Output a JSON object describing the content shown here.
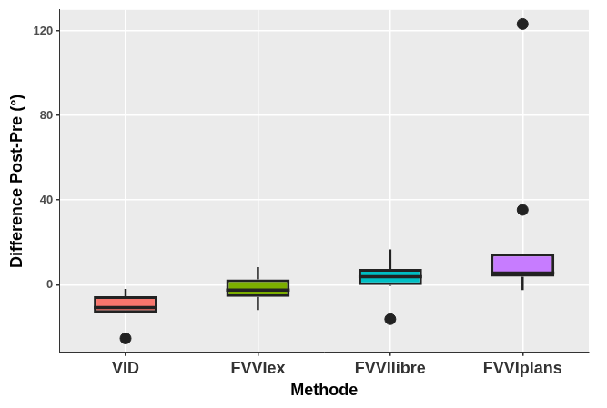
{
  "chart_data": {
    "type": "boxplot",
    "x_label": "Methode",
    "y_label": "Difference Post-Pre (°)",
    "categories": [
      "VID",
      "FVVIex",
      "FVVIlibre",
      "FVVIplans"
    ],
    "boxes": [
      {
        "min": -13.5,
        "q1": -13.3,
        "median": -10.8,
        "q3": -5.4,
        "max": -2,
        "outliers": [
          -25.4
        ]
      },
      {
        "min": -12,
        "q1": -5.8,
        "median": -2.5,
        "q3": 2.5,
        "max": 8.3,
        "outliers": []
      },
      {
        "min": -0.5,
        "q1": -0.2,
        "median": 3.8,
        "q3": 7.5,
        "max": 16.7,
        "outliers": [
          -16.3
        ]
      },
      {
        "min": -2.5,
        "q1": 3.8,
        "median": 5.5,
        "q3": 14.6,
        "max": 14.6,
        "outliers": [
          35.4,
          123.3
        ]
      }
    ],
    "colors": [
      "#F8766D",
      "#7CAE00",
      "#00BFC4",
      "#C77CFF"
    ],
    "ylim": [
      -32,
      130
    ],
    "yticks": [
      0,
      40,
      80,
      120
    ],
    "grid": true
  }
}
